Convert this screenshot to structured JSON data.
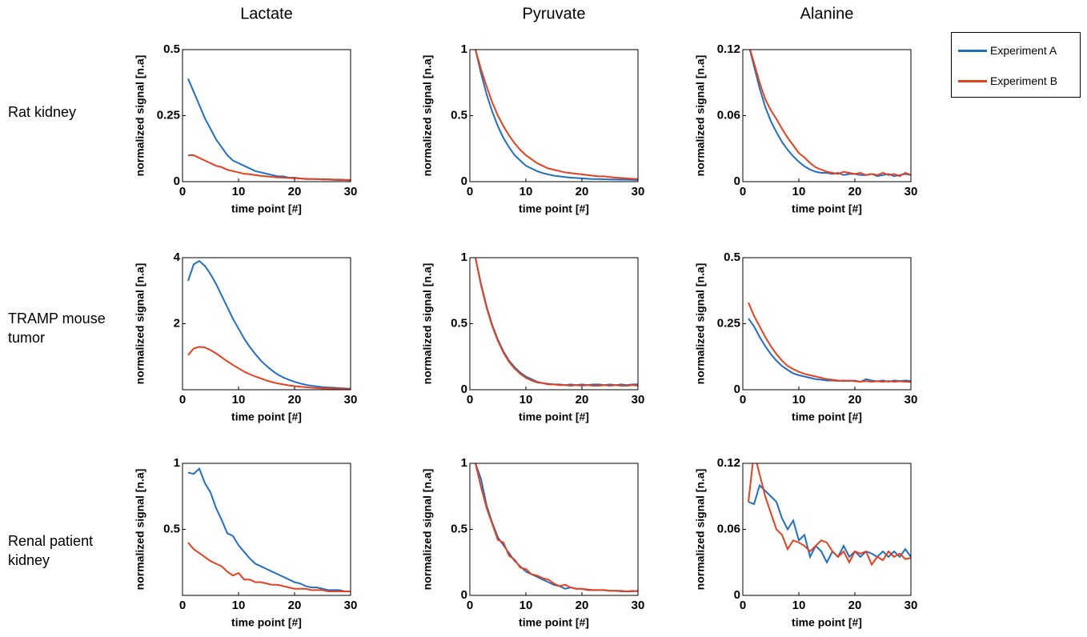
{
  "column_titles": [
    "Lactate",
    "Pyruvate",
    "Alanine"
  ],
  "row_labels": [
    "Rat kidney",
    "TRAMP mouse tumor",
    "Renal patient kidney"
  ],
  "chart_data": [
    {
      "type": "line",
      "xlabel": "time point [#]",
      "ylabel": "normalized signal [n.a]",
      "x": [
        1,
        2,
        3,
        4,
        5,
        6,
        7,
        8,
        9,
        10,
        11,
        12,
        13,
        14,
        15,
        16,
        17,
        18,
        19,
        20,
        21,
        22,
        23,
        24,
        25,
        26,
        27,
        28,
        29,
        30
      ],
      "xlim": [
        0,
        30
      ],
      "xticks": [
        0,
        10,
        20,
        30
      ],
      "ylim": [
        0,
        0.5
      ],
      "yticks": [
        0,
        0.25,
        0.5
      ],
      "series": [
        {
          "name": "Experiment A",
          "color": "#1f6fc5",
          "values": [
            0.39,
            0.34,
            0.29,
            0.24,
            0.2,
            0.16,
            0.13,
            0.1,
            0.08,
            0.07,
            0.06,
            0.05,
            0.04,
            0.035,
            0.03,
            0.025,
            0.02,
            0.02,
            0.015,
            0.015,
            0.012,
            0.01,
            0.01,
            0.01,
            0.008,
            0.008,
            0.007,
            0.006,
            0.006,
            0.005
          ]
        },
        {
          "name": "Experiment B",
          "color": "#e8401c",
          "values": [
            0.1,
            0.1,
            0.09,
            0.08,
            0.07,
            0.06,
            0.055,
            0.045,
            0.04,
            0.035,
            0.03,
            0.028,
            0.025,
            0.022,
            0.02,
            0.018,
            0.016,
            0.015,
            0.014,
            0.013,
            0.012,
            0.011,
            0.01,
            0.01,
            0.009,
            0.009,
            0.008,
            0.008,
            0.007,
            0.007
          ]
        }
      ]
    },
    {
      "type": "line",
      "xlabel": "time point [#]",
      "ylabel": "normalized signal [n.a]",
      "x": [
        1,
        2,
        3,
        4,
        5,
        6,
        7,
        8,
        9,
        10,
        11,
        12,
        13,
        14,
        15,
        16,
        17,
        18,
        19,
        20,
        21,
        22,
        23,
        24,
        25,
        26,
        27,
        28,
        29,
        30
      ],
      "xlim": [
        0,
        30
      ],
      "xticks": [
        0,
        10,
        20,
        30
      ],
      "ylim": [
        0,
        1
      ],
      "yticks": [
        0,
        0.5,
        1
      ],
      "series": [
        {
          "color": "#1f6fc5",
          "values": [
            1,
            0.82,
            0.66,
            0.53,
            0.42,
            0.33,
            0.26,
            0.2,
            0.16,
            0.12,
            0.1,
            0.08,
            0.065,
            0.055,
            0.045,
            0.04,
            0.035,
            0.03,
            0.028,
            0.025,
            0.022,
            0.02,
            0.02,
            0.018,
            0.017,
            0.016,
            0.015,
            0.015,
            0.014,
            0.013
          ]
        },
        {
          "color": "#e8401c",
          "values": [
            1,
            0.85,
            0.72,
            0.6,
            0.5,
            0.42,
            0.35,
            0.29,
            0.24,
            0.2,
            0.17,
            0.14,
            0.12,
            0.1,
            0.09,
            0.08,
            0.07,
            0.065,
            0.06,
            0.055,
            0.05,
            0.045,
            0.04,
            0.04,
            0.035,
            0.03,
            0.028,
            0.025,
            0.022,
            0.02
          ]
        }
      ]
    },
    {
      "type": "line",
      "xlabel": "time point [#]",
      "ylabel": "normalized signal [n.a]",
      "x": [
        1,
        2,
        3,
        4,
        5,
        6,
        7,
        8,
        9,
        10,
        11,
        12,
        13,
        14,
        15,
        16,
        17,
        18,
        19,
        20,
        21,
        22,
        23,
        24,
        25,
        26,
        27,
        28,
        29,
        30
      ],
      "xlim": [
        0,
        30
      ],
      "xticks": [
        0,
        10,
        20,
        30
      ],
      "ylim": [
        0,
        0.12
      ],
      "yticks": [
        0,
        0.06,
        0.12
      ],
      "series": [
        {
          "color": "#1f6fc5",
          "values": [
            0.125,
            0.105,
            0.085,
            0.068,
            0.055,
            0.045,
            0.036,
            0.029,
            0.023,
            0.018,
            0.014,
            0.011,
            0.009,
            0.008,
            0.008,
            0.007,
            0.008,
            0.006,
            0.007,
            0.007,
            0.006,
            0.006,
            0.007,
            0.005,
            0.006,
            0.007,
            0.005,
            0.006,
            0.007,
            0.006
          ]
        },
        {
          "color": "#e8401c",
          "values": [
            0.125,
            0.108,
            0.09,
            0.075,
            0.065,
            0.057,
            0.048,
            0.04,
            0.033,
            0.026,
            0.022,
            0.017,
            0.013,
            0.011,
            0.009,
            0.008,
            0.007,
            0.009,
            0.008,
            0.007,
            0.008,
            0.006,
            0.007,
            0.006,
            0.008,
            0.006,
            0.007,
            0.005,
            0.008,
            0.006
          ]
        }
      ]
    },
    {
      "type": "line",
      "xlabel": "time point [#]",
      "ylabel": "normalized signal [n.a]",
      "x": [
        1,
        2,
        3,
        4,
        5,
        6,
        7,
        8,
        9,
        10,
        11,
        12,
        13,
        14,
        15,
        16,
        17,
        18,
        19,
        20,
        21,
        22,
        23,
        24,
        25,
        26,
        27,
        28,
        29,
        30
      ],
      "xlim": [
        0,
        30
      ],
      "xticks": [
        0,
        10,
        20,
        30
      ],
      "ylim": [
        0,
        4
      ],
      "yticks": [
        2,
        4
      ],
      "series": [
        {
          "color": "#1f6fc5",
          "values": [
            3.3,
            3.8,
            3.9,
            3.75,
            3.5,
            3.2,
            2.85,
            2.5,
            2.15,
            1.85,
            1.55,
            1.3,
            1.08,
            0.88,
            0.72,
            0.58,
            0.46,
            0.37,
            0.3,
            0.24,
            0.19,
            0.15,
            0.12,
            0.1,
            0.08,
            0.07,
            0.06,
            0.05,
            0.04,
            0.03
          ]
        },
        {
          "color": "#e8401c",
          "values": [
            1.05,
            1.25,
            1.3,
            1.28,
            1.2,
            1.1,
            0.98,
            0.86,
            0.75,
            0.65,
            0.55,
            0.47,
            0.4,
            0.34,
            0.28,
            0.23,
            0.19,
            0.16,
            0.13,
            0.11,
            0.09,
            0.08,
            0.06,
            0.05,
            0.04,
            0.04,
            0.03,
            0.03,
            0.02,
            0.02
          ]
        }
      ]
    },
    {
      "type": "line",
      "xlabel": "time point [#]",
      "ylabel": "normalized signal [n.a]",
      "x": [
        1,
        2,
        3,
        4,
        5,
        6,
        7,
        8,
        9,
        10,
        11,
        12,
        13,
        14,
        15,
        16,
        17,
        18,
        19,
        20,
        21,
        22,
        23,
        24,
        25,
        26,
        27,
        28,
        29,
        30
      ],
      "xlim": [
        0,
        30
      ],
      "xticks": [
        0,
        10,
        20,
        30
      ],
      "ylim": [
        0,
        1
      ],
      "yticks": [
        0,
        0.5,
        1
      ],
      "series": [
        {
          "color": "#1f6fc5",
          "values": [
            1,
            0.8,
            0.63,
            0.49,
            0.38,
            0.29,
            0.22,
            0.17,
            0.13,
            0.1,
            0.08,
            0.06,
            0.05,
            0.045,
            0.04,
            0.04,
            0.035,
            0.04,
            0.035,
            0.04,
            0.035,
            0.04,
            0.04,
            0.035,
            0.04,
            0.035,
            0.04,
            0.035,
            0.04,
            0.04
          ]
        },
        {
          "color": "#e8401c",
          "values": [
            1,
            0.79,
            0.62,
            0.48,
            0.37,
            0.28,
            0.21,
            0.16,
            0.12,
            0.09,
            0.07,
            0.055,
            0.05,
            0.04,
            0.04,
            0.035,
            0.035,
            0.03,
            0.035,
            0.03,
            0.035,
            0.03,
            0.03,
            0.035,
            0.03,
            0.035,
            0.03,
            0.03,
            0.035,
            0.03
          ]
        }
      ]
    },
    {
      "type": "line",
      "xlabel": "time point [#]",
      "ylabel": "normalized signal [n.a]",
      "x": [
        1,
        2,
        3,
        4,
        5,
        6,
        7,
        8,
        9,
        10,
        11,
        12,
        13,
        14,
        15,
        16,
        17,
        18,
        19,
        20,
        21,
        22,
        23,
        24,
        25,
        26,
        27,
        28,
        29,
        30
      ],
      "xlim": [
        0,
        30
      ],
      "xticks": [
        0,
        10,
        20,
        30
      ],
      "ylim": [
        0,
        0.5
      ],
      "yticks": [
        0,
        0.25,
        0.5
      ],
      "series": [
        {
          "color": "#1f6fc5",
          "values": [
            0.27,
            0.24,
            0.2,
            0.165,
            0.135,
            0.11,
            0.09,
            0.075,
            0.062,
            0.055,
            0.05,
            0.045,
            0.04,
            0.038,
            0.035,
            0.035,
            0.033,
            0.035,
            0.033,
            0.035,
            0.03,
            0.04,
            0.035,
            0.032,
            0.035,
            0.03,
            0.035,
            0.033,
            0.035,
            0.033
          ]
        },
        {
          "color": "#e8401c",
          "values": [
            0.33,
            0.28,
            0.24,
            0.2,
            0.165,
            0.135,
            0.11,
            0.09,
            0.078,
            0.068,
            0.06,
            0.055,
            0.05,
            0.045,
            0.04,
            0.038,
            0.035,
            0.033,
            0.035,
            0.032,
            0.03,
            0.033,
            0.03,
            0.032,
            0.03,
            0.033,
            0.03,
            0.032,
            0.03,
            0.03
          ]
        }
      ]
    },
    {
      "type": "line",
      "xlabel": "time point [#]",
      "ylabel": "normalized signal [n.a]",
      "x": [
        1,
        2,
        3,
        4,
        5,
        6,
        7,
        8,
        9,
        10,
        11,
        12,
        13,
        14,
        15,
        16,
        17,
        18,
        19,
        20,
        21,
        22,
        23,
        24,
        25,
        26,
        27,
        28,
        29,
        30
      ],
      "xlim": [
        0,
        30
      ],
      "xticks": [
        0,
        10,
        20,
        30
      ],
      "ylim": [
        0,
        1
      ],
      "yticks": [
        0.5,
        1
      ],
      "series": [
        {
          "color": "#1f6fc5",
          "values": [
            0.93,
            0.92,
            0.96,
            0.85,
            0.78,
            0.66,
            0.57,
            0.47,
            0.45,
            0.38,
            0.33,
            0.28,
            0.24,
            0.22,
            0.2,
            0.18,
            0.16,
            0.14,
            0.12,
            0.1,
            0.09,
            0.07,
            0.06,
            0.06,
            0.05,
            0.04,
            0.04,
            0.04,
            0.03,
            0.03
          ]
        },
        {
          "color": "#e8401c",
          "values": [
            0.4,
            0.35,
            0.32,
            0.29,
            0.26,
            0.24,
            0.22,
            0.18,
            0.15,
            0.17,
            0.12,
            0.12,
            0.1,
            0.1,
            0.09,
            0.08,
            0.08,
            0.07,
            0.06,
            0.05,
            0.05,
            0.05,
            0.04,
            0.04,
            0.04,
            0.03,
            0.03,
            0.03,
            0.03,
            0.03
          ]
        }
      ]
    },
    {
      "type": "line",
      "xlabel": "time point [#]",
      "ylabel": "normalized signal [n.a]",
      "x": [
        1,
        2,
        3,
        4,
        5,
        6,
        7,
        8,
        9,
        10,
        11,
        12,
        13,
        14,
        15,
        16,
        17,
        18,
        19,
        20,
        21,
        22,
        23,
        24,
        25,
        26,
        27,
        28,
        29,
        30
      ],
      "xlim": [
        0,
        30
      ],
      "xticks": [
        0,
        10,
        20,
        30
      ],
      "ylim": [
        0,
        1
      ],
      "yticks": [
        0,
        0.5,
        1
      ],
      "series": [
        {
          "color": "#1f6fc5",
          "values": [
            1,
            0.88,
            0.68,
            0.55,
            0.44,
            0.38,
            0.32,
            0.26,
            0.22,
            0.18,
            0.16,
            0.14,
            0.12,
            0.1,
            0.08,
            0.07,
            0.05,
            0.06,
            0.05,
            0.05,
            0.04,
            0.04,
            0.04,
            0.04,
            0.035,
            0.035,
            0.03,
            0.03,
            0.03,
            0.035
          ]
        },
        {
          "color": "#e8401c",
          "values": [
            1,
            0.82,
            0.66,
            0.54,
            0.42,
            0.4,
            0.3,
            0.27,
            0.21,
            0.2,
            0.16,
            0.15,
            0.13,
            0.12,
            0.09,
            0.07,
            0.08,
            0.06,
            0.05,
            0.05,
            0.045,
            0.04,
            0.04,
            0.04,
            0.035,
            0.035,
            0.035,
            0.03,
            0.035,
            0.03
          ]
        }
      ]
    },
    {
      "type": "line",
      "xlabel": "time point [#]",
      "ylabel": "normalized signal [n.a]",
      "x": [
        1,
        2,
        3,
        4,
        5,
        6,
        7,
        8,
        9,
        10,
        11,
        12,
        13,
        14,
        15,
        16,
        17,
        18,
        19,
        20,
        21,
        22,
        23,
        24,
        25,
        26,
        27,
        28,
        29,
        30
      ],
      "xlim": [
        0,
        30
      ],
      "xticks": [
        0,
        10,
        20,
        30
      ],
      "ylim": [
        0,
        0.12
      ],
      "yticks": [
        0,
        0.06,
        0.12
      ],
      "series": [
        {
          "color": "#1f6fc5",
          "values": [
            0.085,
            0.083,
            0.1,
            0.095,
            0.09,
            0.085,
            0.07,
            0.06,
            0.068,
            0.05,
            0.055,
            0.035,
            0.045,
            0.04,
            0.03,
            0.04,
            0.035,
            0.045,
            0.035,
            0.04,
            0.035,
            0.04,
            0.038,
            0.035,
            0.04,
            0.035,
            0.04,
            0.035,
            0.042,
            0.035
          ]
        },
        {
          "color": "#e8401c",
          "values": [
            0.085,
            0.13,
            0.11,
            0.09,
            0.075,
            0.06,
            0.055,
            0.042,
            0.05,
            0.048,
            0.045,
            0.04,
            0.045,
            0.05,
            0.048,
            0.04,
            0.035,
            0.04,
            0.03,
            0.04,
            0.038,
            0.04,
            0.028,
            0.035,
            0.032,
            0.04,
            0.035,
            0.038,
            0.033,
            0.034
          ]
        }
      ]
    }
  ]
}
